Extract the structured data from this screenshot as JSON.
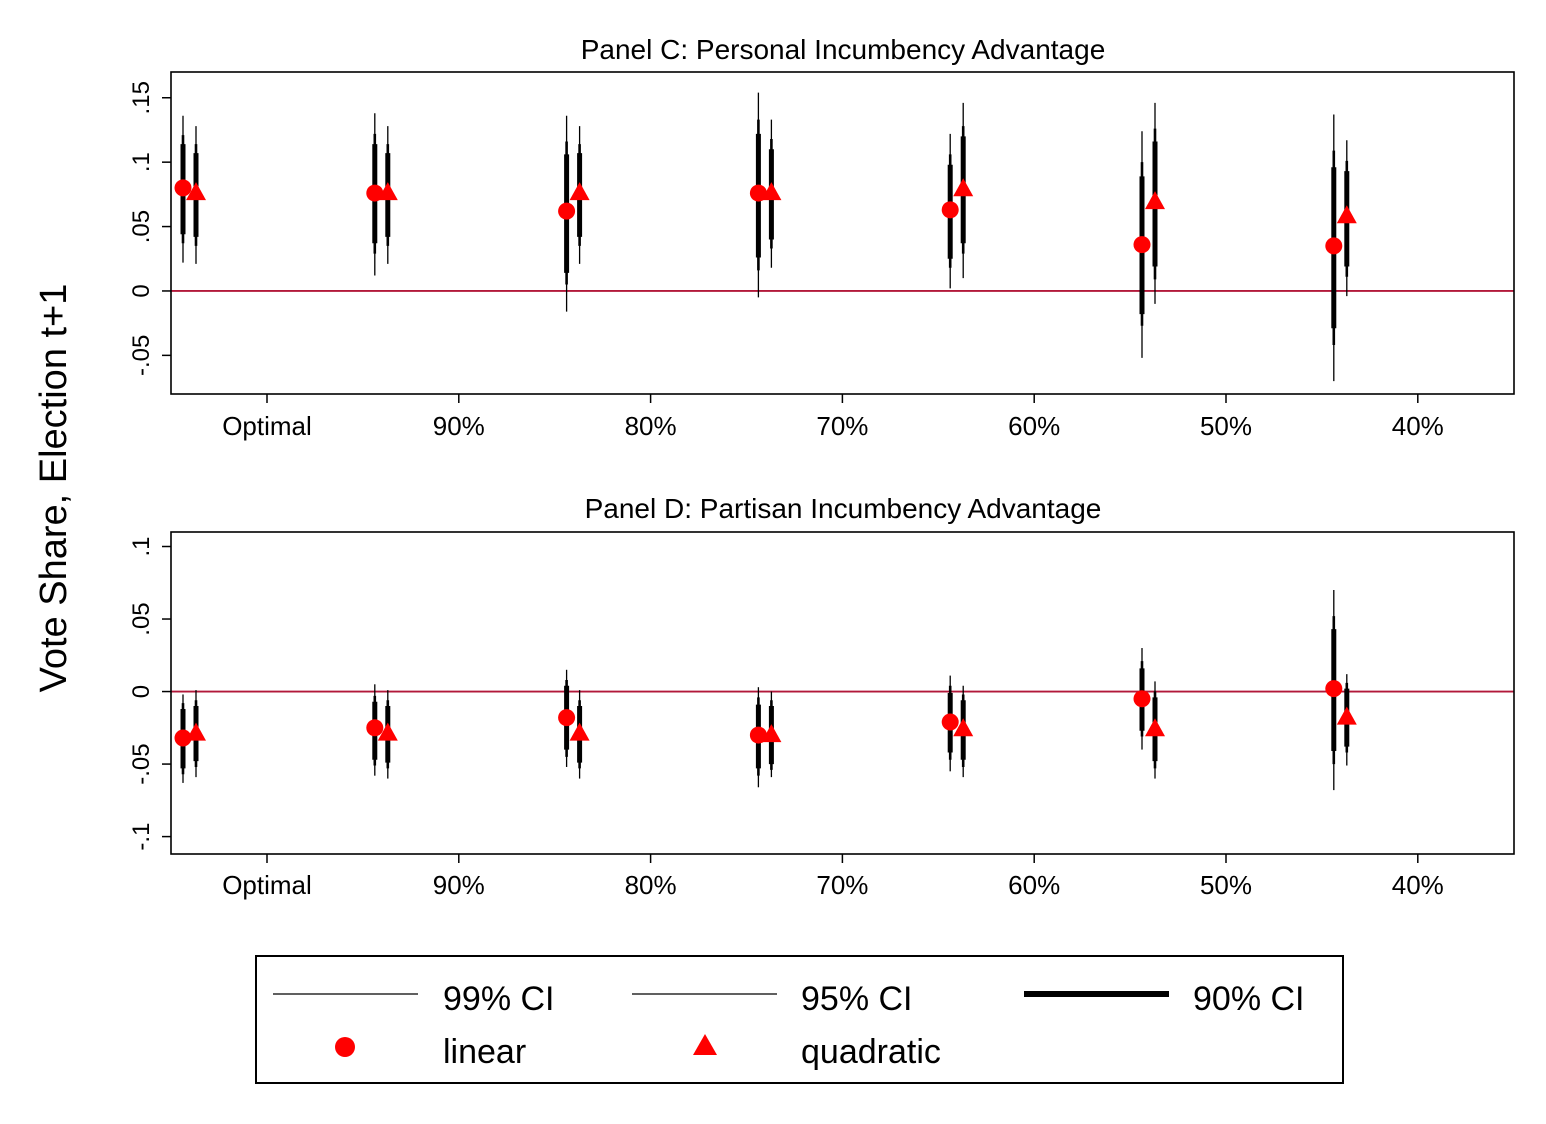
{
  "figure": {
    "ylabel": "Vote Share,  Election t+1",
    "colors": {
      "marker": "#ff0000",
      "zero_line": "#b2183a",
      "ci": "#000000",
      "frame": "#000000"
    }
  },
  "chart_data": [
    {
      "type": "errorbar",
      "title": "Panel C: Personal Incumbency Advantage",
      "categories": [
        "Optimal",
        "90%",
        "80%",
        "70%",
        "60%",
        "50%",
        "40%"
      ],
      "ylabel": "Vote Share,  Election t+1",
      "ylim": [
        -0.08,
        0.17
      ],
      "yticks": [
        -0.05,
        0,
        0.05,
        0.1,
        0.15
      ],
      "ytick_labels": [
        "-.05",
        "0",
        ".05",
        ".1",
        ".15"
      ],
      "reference_line": 0,
      "series": [
        {
          "name": "linear",
          "marker": "circle",
          "points": [
            {
              "group": "Optimal",
              "estimate": 0.08,
              "ci90": [
                0.044,
                0.114
              ],
              "ci95": [
                0.037,
                0.121
              ],
              "ci99": [
                0.022,
                0.136
              ]
            },
            {
              "group": "90%",
              "estimate": 0.076,
              "ci90": [
                0.037,
                0.114
              ],
              "ci95": [
                0.029,
                0.122
              ],
              "ci99": [
                0.012,
                0.138
              ]
            },
            {
              "group": "80%",
              "estimate": 0.062,
              "ci90": [
                0.014,
                0.106
              ],
              "ci95": [
                0.005,
                0.116
              ],
              "ci99": [
                -0.016,
                0.136
              ]
            },
            {
              "group": "70%",
              "estimate": 0.076,
              "ci90": [
                0.026,
                0.122
              ],
              "ci95": [
                0.016,
                0.133
              ],
              "ci99": [
                -0.005,
                0.154
              ]
            },
            {
              "group": "60%",
              "estimate": 0.063,
              "ci90": [
                0.025,
                0.098
              ],
              "ci95": [
                0.018,
                0.106
              ],
              "ci99": [
                0.002,
                0.122
              ]
            },
            {
              "group": "50%",
              "estimate": 0.036,
              "ci90": [
                -0.018,
                0.089
              ],
              "ci95": [
                -0.027,
                0.1
              ],
              "ci99": [
                -0.052,
                0.124
              ]
            },
            {
              "group": "40%",
              "estimate": 0.035,
              "ci90": [
                -0.029,
                0.096
              ],
              "ci95": [
                -0.042,
                0.109
              ],
              "ci99": [
                -0.07,
                0.137
              ]
            }
          ]
        },
        {
          "name": "quadratic",
          "marker": "triangle",
          "points": [
            {
              "group": "Optimal",
              "estimate": 0.076,
              "ci90": [
                0.042,
                0.107
              ],
              "ci95": [
                0.035,
                0.114
              ],
              "ci99": [
                0.021,
                0.128
              ]
            },
            {
              "group": "90%",
              "estimate": 0.076,
              "ci90": [
                0.042,
                0.107
              ],
              "ci95": [
                0.035,
                0.114
              ],
              "ci99": [
                0.021,
                0.128
              ]
            },
            {
              "group": "80%",
              "estimate": 0.076,
              "ci90": [
                0.042,
                0.107
              ],
              "ci95": [
                0.035,
                0.114
              ],
              "ci99": [
                0.021,
                0.128
              ]
            },
            {
              "group": "70%",
              "estimate": 0.076,
              "ci90": [
                0.04,
                0.11
              ],
              "ci95": [
                0.033,
                0.118
              ],
              "ci99": [
                0.018,
                0.133
              ]
            },
            {
              "group": "60%",
              "estimate": 0.079,
              "ci90": [
                0.037,
                0.12
              ],
              "ci95": [
                0.029,
                0.128
              ],
              "ci99": [
                0.01,
                0.146
              ]
            },
            {
              "group": "50%",
              "estimate": 0.069,
              "ci90": [
                0.019,
                0.116
              ],
              "ci95": [
                0.009,
                0.126
              ],
              "ci99": [
                -0.01,
                0.146
              ]
            },
            {
              "group": "40%",
              "estimate": 0.058,
              "ci90": [
                0.019,
                0.093
              ],
              "ci95": [
                0.011,
                0.101
              ],
              "ci99": [
                -0.004,
                0.117
              ]
            }
          ]
        }
      ]
    },
    {
      "type": "errorbar",
      "title": "Panel D: Partisan Incumbency Advantage",
      "categories": [
        "Optimal",
        "90%",
        "80%",
        "70%",
        "60%",
        "50%",
        "40%"
      ],
      "ylabel": "Vote Share,  Election t+1",
      "ylim": [
        -0.112,
        0.11
      ],
      "yticks": [
        -0.1,
        -0.05,
        0,
        0.05,
        0.1
      ],
      "ytick_labels": [
        "-.1",
        "-.05",
        "0",
        ".05",
        ".1"
      ],
      "reference_line": 0,
      "series": [
        {
          "name": "linear",
          "marker": "circle",
          "points": [
            {
              "group": "Optimal",
              "estimate": -0.032,
              "ci90": [
                -0.053,
                -0.012
              ],
              "ci95": [
                -0.057,
                -0.008
              ],
              "ci99": [
                -0.063,
                -0.002
              ]
            },
            {
              "group": "90%",
              "estimate": -0.025,
              "ci90": [
                -0.047,
                -0.007
              ],
              "ci95": [
                -0.051,
                -0.003
              ],
              "ci99": [
                -0.058,
                0.005
              ]
            },
            {
              "group": "80%",
              "estimate": -0.018,
              "ci90": [
                -0.04,
                0.004
              ],
              "ci95": [
                -0.045,
                0.008
              ],
              "ci99": [
                -0.052,
                0.015
              ]
            },
            {
              "group": "70%",
              "estimate": -0.03,
              "ci90": [
                -0.053,
                -0.009
              ],
              "ci95": [
                -0.058,
                -0.004
              ],
              "ci99": [
                -0.066,
                0.003
              ]
            },
            {
              "group": "60%",
              "estimate": -0.021,
              "ci90": [
                -0.042,
                -0.001
              ],
              "ci95": [
                -0.047,
                0.004
              ],
              "ci99": [
                -0.055,
                0.011
              ]
            },
            {
              "group": "50%",
              "estimate": -0.005,
              "ci90": [
                -0.027,
                0.016
              ],
              "ci95": [
                -0.031,
                0.021
              ],
              "ci99": [
                -0.04,
                0.03
              ]
            },
            {
              "group": "40%",
              "estimate": 0.002,
              "ci90": [
                -0.041,
                0.043
              ],
              "ci95": [
                -0.05,
                0.052
              ],
              "ci99": [
                -0.068,
                0.07
              ]
            }
          ]
        },
        {
          "name": "quadratic",
          "marker": "triangle",
          "points": [
            {
              "group": "Optimal",
              "estimate": -0.029,
              "ci90": [
                -0.048,
                -0.01
              ],
              "ci95": [
                -0.052,
                -0.006
              ],
              "ci99": [
                -0.059,
                0.001
              ]
            },
            {
              "group": "90%",
              "estimate": -0.029,
              "ci90": [
                -0.049,
                -0.01
              ],
              "ci95": [
                -0.053,
                -0.006
              ],
              "ci99": [
                -0.06,
                0.001
              ]
            },
            {
              "group": "80%",
              "estimate": -0.029,
              "ci90": [
                -0.049,
                -0.01
              ],
              "ci95": [
                -0.053,
                -0.006
              ],
              "ci99": [
                -0.06,
                0.001
              ]
            },
            {
              "group": "70%",
              "estimate": -0.03,
              "ci90": [
                -0.05,
                -0.01
              ],
              "ci95": [
                -0.054,
                -0.006
              ],
              "ci99": [
                -0.059,
                0.0
              ]
            },
            {
              "group": "60%",
              "estimate": -0.026,
              "ci90": [
                -0.047,
                -0.006
              ],
              "ci95": [
                -0.052,
                -0.002
              ],
              "ci99": [
                -0.059,
                0.004
              ]
            },
            {
              "group": "50%",
              "estimate": -0.026,
              "ci90": [
                -0.048,
                -0.004
              ],
              "ci95": [
                -0.053,
                0.0
              ],
              "ci99": [
                -0.06,
                0.007
              ]
            },
            {
              "group": "40%",
              "estimate": -0.018,
              "ci90": [
                -0.038,
                0.002
              ],
              "ci95": [
                -0.042,
                0.006
              ],
              "ci99": [
                -0.051,
                0.012
              ]
            }
          ]
        }
      ]
    }
  ],
  "legend": {
    "placement": "bottom-center",
    "items": [
      {
        "label": "99% CI",
        "symbol": "thin-line"
      },
      {
        "label": "95% CI",
        "symbol": "thin-line"
      },
      {
        "label": "90% CI",
        "symbol": "thick-line"
      },
      {
        "label": "linear",
        "symbol": "circle"
      },
      {
        "label": "quadratic",
        "symbol": "triangle"
      }
    ]
  }
}
